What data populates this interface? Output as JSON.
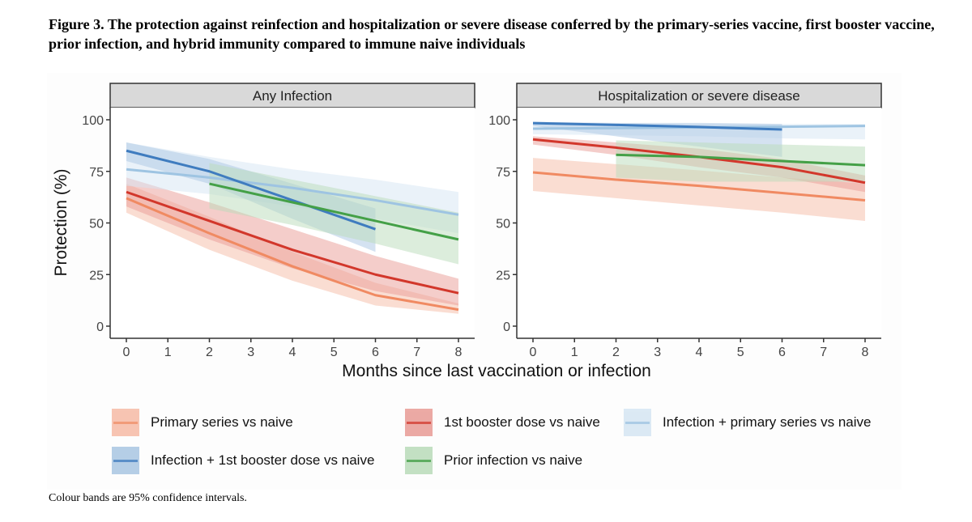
{
  "title": "Figure 3. The protection against reinfection and hospitalization or severe disease conferred by the primary-series vaccine, first booster vaccine, prior infection, and hybrid immunity compared to immune naive individuals",
  "footnote": "Colour bands are 95% confidence intervals.",
  "chart_data": {
    "type": "line",
    "xlabel": "Months since last vaccination or infection",
    "ylabel": "Protection (%)",
    "xlim": [
      0,
      8
    ],
    "ylim": [
      0,
      100
    ],
    "xticks": [
      "0",
      "1",
      "2",
      "3",
      "4",
      "5",
      "6",
      "7",
      "8"
    ],
    "yticks": [
      "0",
      "25",
      "50",
      "75",
      "100"
    ],
    "grid": false,
    "legend_position": "bottom",
    "series_styles": [
      {
        "name": "Primary series vs naive",
        "color": "#f08a62",
        "band_color": "#f6bba6"
      },
      {
        "name": "1st booster dose vs naive",
        "color": "#d2372b",
        "band_color": "#e99b95"
      },
      {
        "name": "Infection + primary series vs naive",
        "color": "#9ec4e2",
        "band_color": "#d6e6f3"
      },
      {
        "name": "Infection + 1st booster dose vs naive",
        "color": "#3f7cbf",
        "band_color": "#a9c6e3"
      },
      {
        "name": "Prior infection vs naive",
        "color": "#44a047",
        "band_color": "#b9dbb9"
      }
    ],
    "panels": [
      {
        "title": "Any Infection",
        "series": [
          {
            "name": "Primary series vs naive",
            "x": [
              0,
              2,
              4,
              6,
              8
            ],
            "y": [
              62,
              45,
              29,
              15,
              8
            ],
            "lower": [
              55,
              37,
              22,
              10,
              6
            ],
            "upper": [
              69,
              53,
              36,
              21,
              11
            ]
          },
          {
            "name": "1st booster dose vs naive",
            "x": [
              0,
              2,
              4,
              6,
              8
            ],
            "y": [
              65,
              51,
              37,
              25,
              16
            ],
            "lower": [
              58,
              42,
              28,
              17,
              10
            ],
            "upper": [
              72,
              60,
              47,
              34,
              23
            ]
          },
          {
            "name": "Infection + primary series vs naive",
            "x": [
              0,
              2,
              4,
              6,
              8
            ],
            "y": [
              76,
              72,
              67,
              61,
              54
            ],
            "lower": [
              68,
              64,
              58,
              52,
              45
            ],
            "upper": [
              89,
              82,
              76,
              71,
              65
            ]
          },
          {
            "name": "Infection + 1st booster dose vs naive",
            "x": [
              0,
              2,
              4,
              6
            ],
            "y": [
              85,
              75,
              61,
              47
            ],
            "lower": [
              80,
              69,
              52,
              36
            ],
            "upper": [
              89,
              81,
              69,
              57
            ]
          },
          {
            "name": "Prior infection vs naive",
            "x": [
              2,
              4,
              6,
              8
            ],
            "y": [
              69,
              60,
              51,
              42
            ],
            "lower": [
              57,
              49,
              40,
              30
            ],
            "upper": [
              79,
              71,
              63,
              55
            ]
          }
        ]
      },
      {
        "title": "Hospitalization or severe disease",
        "series": [
          {
            "name": "Primary series vs naive",
            "x": [
              0,
              2,
              4,
              6,
              8
            ],
            "y": [
              74.5,
              71,
              68,
              64.5,
              61
            ],
            "lower": [
              65.5,
              62,
              58.5,
              55,
              51
            ],
            "upper": [
              81.5,
              78.5,
              75.5,
              72,
              69
            ]
          },
          {
            "name": "1st booster dose vs naive",
            "x": [
              0,
              2,
              4,
              6,
              8
            ],
            "y": [
              90.5,
              86.5,
              82,
              77,
              69.5
            ],
            "lower": [
              88,
              83,
              77,
              72,
              65
            ],
            "upper": [
              92,
              89,
              86,
              81,
              73
            ]
          },
          {
            "name": "Infection + primary series vs naive",
            "x": [
              0,
              2,
              4,
              6,
              8
            ],
            "y": [
              95.7,
              96,
              96.3,
              96.6,
              97
            ],
            "lower": [
              93,
              92.5,
              92,
              91,
              90.5
            ],
            "upper": [
              98,
              98,
              98,
              98,
              98
            ]
          },
          {
            "name": "Infection + 1st booster dose vs naive",
            "x": [
              0,
              2,
              4,
              6
            ],
            "y": [
              98.4,
              97.5,
              96.5,
              95.3
            ],
            "lower": [
              97,
              92,
              87,
              82
            ],
            "upper": [
              99,
              98.5,
              98.5,
              98
            ]
          },
          {
            "name": "Prior infection vs naive",
            "x": [
              2,
              4,
              6,
              8
            ],
            "y": [
              83,
              82,
              80,
              78
            ],
            "lower": [
              72,
              70,
              70,
              70
            ],
            "upper": [
              90,
              89,
              88,
              87
            ]
          }
        ]
      }
    ]
  }
}
